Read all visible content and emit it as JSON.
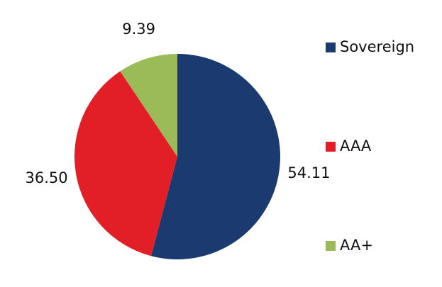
{
  "chart_data": {
    "type": "pie",
    "categories": [
      "Sovereign",
      "AAA",
      "AA+"
    ],
    "values": [
      54.11,
      36.5,
      9.39
    ],
    "value_labels": [
      "54.11",
      "36.50",
      "9.39"
    ],
    "colors": [
      "#1b3b70",
      "#e21f26",
      "#9bbb59"
    ],
    "legend": "right"
  }
}
